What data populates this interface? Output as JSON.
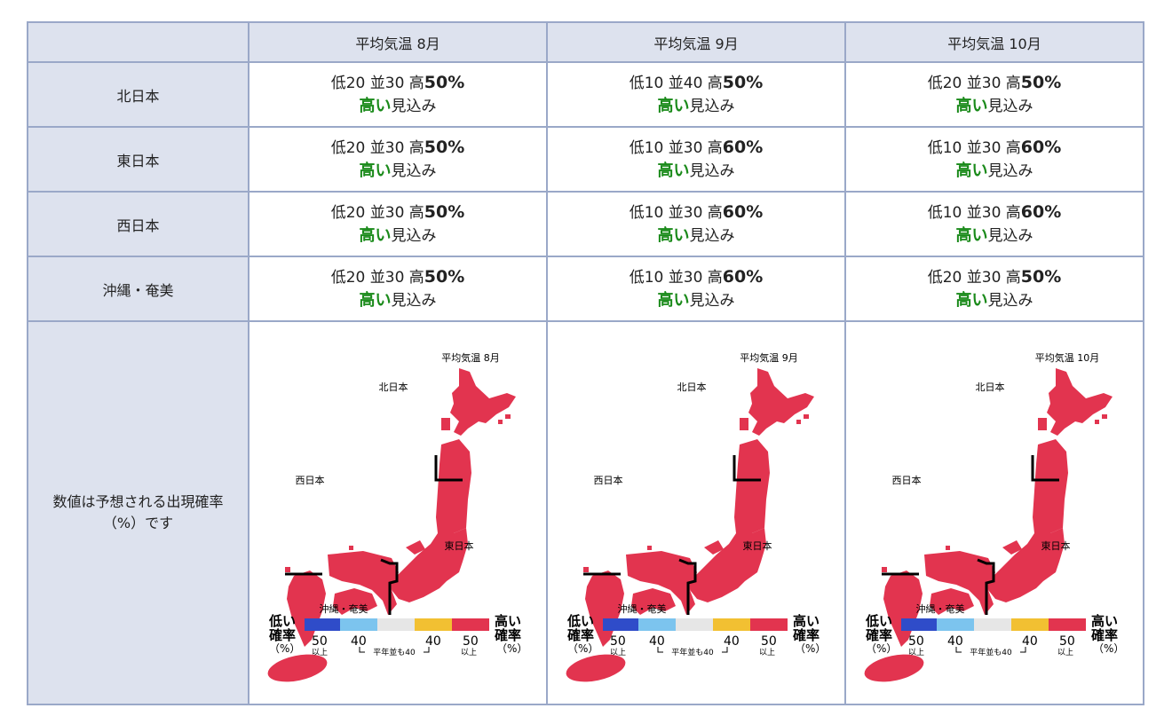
{
  "table": {
    "columns": [
      "",
      "平均気温 8月",
      "平均気温 9月",
      "平均気温 10月"
    ],
    "rows": [
      {
        "region": "北日本",
        "cells": [
          {
            "low": "低20",
            "mid": "並30",
            "high_prefix": "高",
            "high_value": "50%",
            "verdict_em": "高い",
            "verdict_rest": "見込み"
          },
          {
            "low": "低10",
            "mid": "並40",
            "high_prefix": "高",
            "high_value": "50%",
            "verdict_em": "高い",
            "verdict_rest": "見込み"
          },
          {
            "low": "低20",
            "mid": "並30",
            "high_prefix": "高",
            "high_value": "50%",
            "verdict_em": "高い",
            "verdict_rest": "見込み"
          }
        ]
      },
      {
        "region": "東日本",
        "cells": [
          {
            "low": "低20",
            "mid": "並30",
            "high_prefix": "高",
            "high_value": "50%",
            "verdict_em": "高い",
            "verdict_rest": "見込み"
          },
          {
            "low": "低10",
            "mid": "並30",
            "high_prefix": "高",
            "high_value": "60%",
            "verdict_em": "高い",
            "verdict_rest": "見込み"
          },
          {
            "low": "低10",
            "mid": "並30",
            "high_prefix": "高",
            "high_value": "60%",
            "verdict_em": "高い",
            "verdict_rest": "見込み"
          }
        ]
      },
      {
        "region": "西日本",
        "cells": [
          {
            "low": "低20",
            "mid": "並30",
            "high_prefix": "高",
            "high_value": "50%",
            "verdict_em": "高い",
            "verdict_rest": "見込み"
          },
          {
            "low": "低10",
            "mid": "並30",
            "high_prefix": "高",
            "high_value": "60%",
            "verdict_em": "高い",
            "verdict_rest": "見込み"
          },
          {
            "low": "低10",
            "mid": "並30",
            "high_prefix": "高",
            "high_value": "60%",
            "verdict_em": "高い",
            "verdict_rest": "見込み"
          }
        ]
      },
      {
        "region": "沖縄・奄美",
        "cells": [
          {
            "low": "低20",
            "mid": "並30",
            "high_prefix": "高",
            "high_value": "50%",
            "verdict_em": "高い",
            "verdict_rest": "見込み"
          },
          {
            "low": "低10",
            "mid": "並30",
            "high_prefix": "高",
            "high_value": "60%",
            "verdict_em": "高い",
            "verdict_rest": "見込み"
          },
          {
            "low": "低20",
            "mid": "並30",
            "high_prefix": "高",
            "high_value": "50%",
            "verdict_em": "高い",
            "verdict_rest": "見込み"
          }
        ]
      }
    ],
    "note_line1": "数値は予想される出現確率",
    "note_line2": "（%）です"
  },
  "maps": [
    {
      "title": "平均気温 8月"
    },
    {
      "title": "平均気温 9月"
    },
    {
      "title": "平均気温 10月"
    }
  ],
  "map_labels": {
    "north": "北日本",
    "east": "東日本",
    "west": "西日本",
    "okinawa": "沖縄・奄美"
  },
  "legend": {
    "low1": "低い",
    "low2": "確率",
    "low3": "（%）",
    "high1": "高い",
    "high2": "確率",
    "high3": "（%）",
    "t50a": "50",
    "t40a": "40",
    "t40b": "40",
    "t50b": "50",
    "ijou_a": "以上",
    "ijou_b": "以上",
    "normal": "平年並も40",
    "colors": [
      "#2f4cc9",
      "#7cc4ee",
      "#e6e6e6",
      "#f2c032",
      "#e2344f"
    ]
  },
  "colors": {
    "high": "#e2344f",
    "header_bg": "#dde2ee",
    "verdict": "#1a8a1a"
  }
}
